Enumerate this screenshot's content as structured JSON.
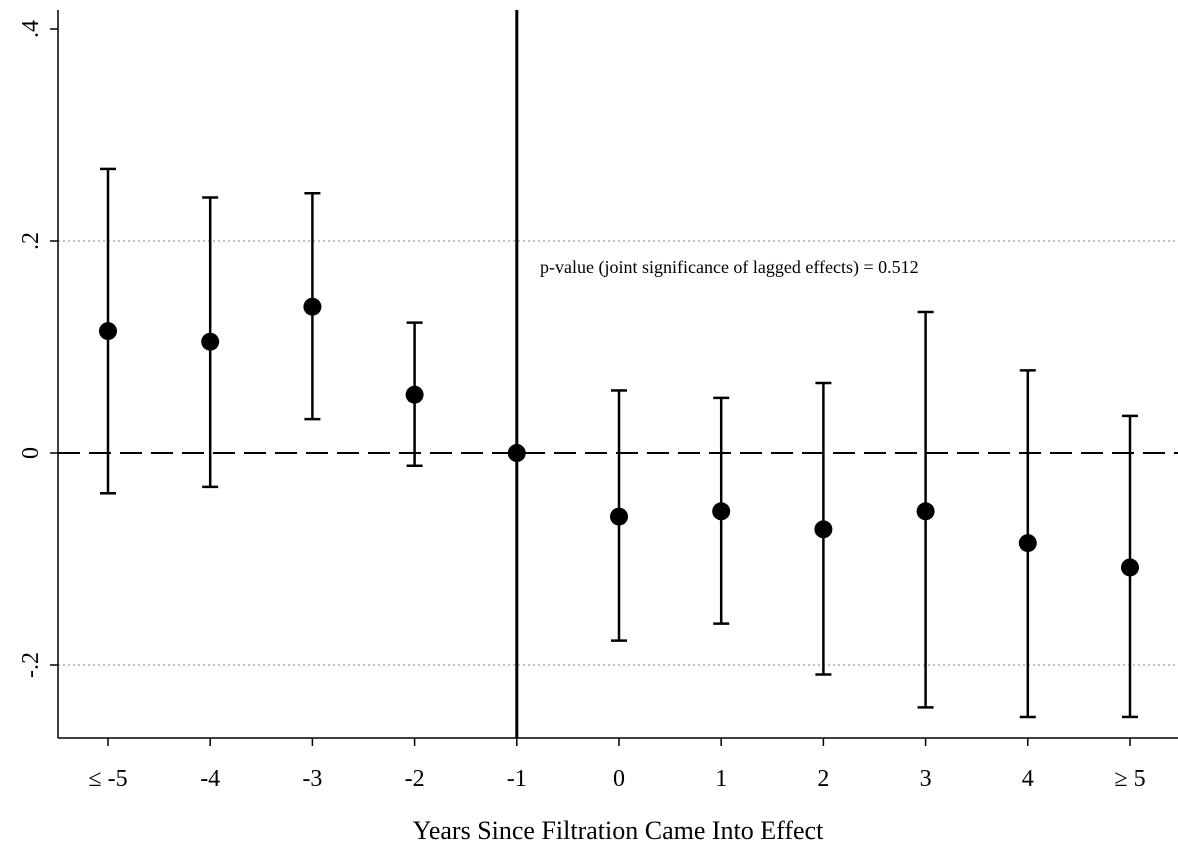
{
  "chart_data": {
    "type": "scatter",
    "subtype": "coefficient-plot-with-confidence-intervals",
    "title": "",
    "xlabel": "Years Since Filtration Came Into Effect",
    "ylabel": "",
    "categories": [
      "≤ -5",
      "-4",
      "-3",
      "-2",
      "-1",
      "0",
      "1",
      "2",
      "3",
      "4",
      "≥ 5"
    ],
    "series": [
      {
        "estimates": [
          0.115,
          0.105,
          0.138,
          0.055,
          0.0,
          -0.06,
          -0.055,
          -0.072,
          -0.055,
          -0.085,
          -0.108
        ],
        "ci_low": [
          -0.038,
          -0.032,
          0.032,
          -0.012,
          null,
          -0.177,
          -0.161,
          -0.209,
          -0.24,
          -0.249,
          -0.249
        ],
        "ci_high": [
          0.268,
          0.241,
          0.245,
          0.123,
          null,
          0.059,
          0.052,
          0.066,
          0.133,
          0.078,
          0.035
        ]
      }
    ],
    "ylim": [
      -0.265,
      0.41
    ],
    "yticks": [
      -0.2,
      0,
      0.2,
      0.4
    ],
    "ytick_labels": [
      "-.2",
      "0",
      ".2",
      ".4"
    ],
    "hlines": [
      {
        "y": 0,
        "style": "dashed"
      },
      {
        "y": 0.2,
        "style": "dotted"
      },
      {
        "y": -0.2,
        "style": "dotted"
      }
    ],
    "vline": {
      "category": "-1",
      "style": "solid"
    },
    "annotation": "p-value (joint significance of lagged effects) = 0.512",
    "grid": false,
    "legend": "none",
    "colors": {
      "marks": "#000000",
      "dotted_lines": "#aaaaaa"
    }
  }
}
